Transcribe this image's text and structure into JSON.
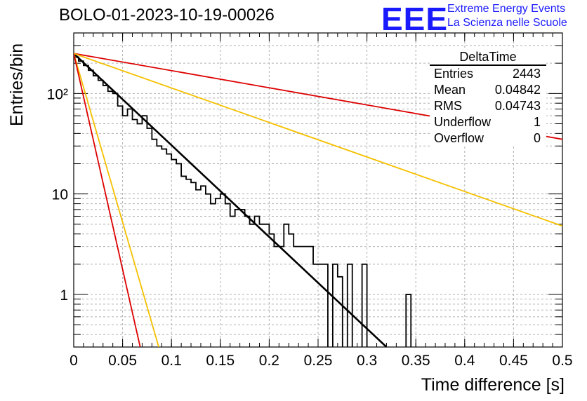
{
  "header": {
    "title": "BOLO-01-2023-10-19-00026",
    "logo_text": "EEE",
    "logo_line1": "Extreme Energy Events",
    "logo_line2": "La Scienza nelle Scuole"
  },
  "stats_box": {
    "name": "DeltaTime",
    "rows": [
      {
        "label": "Entries",
        "value": "2443"
      },
      {
        "label": "Mean",
        "value": "0.04842"
      },
      {
        "label": "RMS",
        "value": "0.04743"
      },
      {
        "label": "Underflow",
        "value": "1"
      },
      {
        "label": "Overflow",
        "value": "0"
      }
    ]
  },
  "colors": {
    "histogram": "#000000",
    "fit": "#000000",
    "red": "#dd0000",
    "yellow": "#f5c000",
    "grid": "#b0b0b0"
  },
  "chart_data": {
    "type": "line",
    "xlabel": "Time difference [s]",
    "ylabel": "Entries/bin",
    "xlim": [
      0,
      0.5
    ],
    "ylim": [
      0.3,
      400
    ],
    "y_scale": "log",
    "grid": true,
    "x_ticks": [
      "0",
      "0.05",
      "0.1",
      "0.15",
      "0.2",
      "0.25",
      "0.3",
      "0.35",
      "0.4",
      "0.45",
      "0.5"
    ],
    "y_ticks": [
      {
        "value": 1,
        "label": "1"
      },
      {
        "value": 10,
        "label": "10"
      },
      {
        "value": 100,
        "label": "10²"
      }
    ],
    "bin_width": 0.005,
    "histogram_bins": [
      230,
      210,
      190,
      170,
      150,
      135,
      120,
      105,
      100,
      75,
      60,
      70,
      55,
      50,
      60,
      45,
      35,
      30,
      28,
      25,
      22,
      20,
      15,
      14,
      13,
      11,
      12,
      10,
      8,
      9,
      10,
      8,
      6,
      7,
      7,
      6,
      5,
      6,
      5,
      5,
      4,
      3,
      3,
      5,
      4,
      3,
      3,
      3,
      3,
      2,
      2,
      2,
      0,
      2,
      1.5,
      0,
      2,
      0,
      0,
      2,
      0,
      0,
      0,
      0,
      0,
      0,
      0,
      0,
      1,
      0,
      0,
      0,
      0,
      0,
      0,
      0,
      0,
      0,
      0,
      0,
      0,
      0,
      0,
      0,
      0,
      0,
      0,
      0,
      0,
      0,
      0,
      0,
      0,
      0,
      0,
      0,
      0,
      0,
      0,
      0
    ],
    "series": [
      {
        "style": "fit",
        "points": [
          [
            0,
            250
          ],
          [
            0.32,
            0.3
          ]
        ]
      },
      {
        "style": "red",
        "points": [
          [
            0,
            250
          ],
          [
            0.5,
            35
          ]
        ]
      },
      {
        "style": "yellow",
        "points": [
          [
            0,
            250
          ],
          [
            0.5,
            4.8
          ]
        ]
      },
      {
        "style": "yellow",
        "points": [
          [
            0,
            250
          ],
          [
            0.087,
            0.3
          ]
        ]
      },
      {
        "style": "red",
        "points": [
          [
            0,
            250
          ],
          [
            0.068,
            0.3
          ]
        ]
      }
    ]
  }
}
